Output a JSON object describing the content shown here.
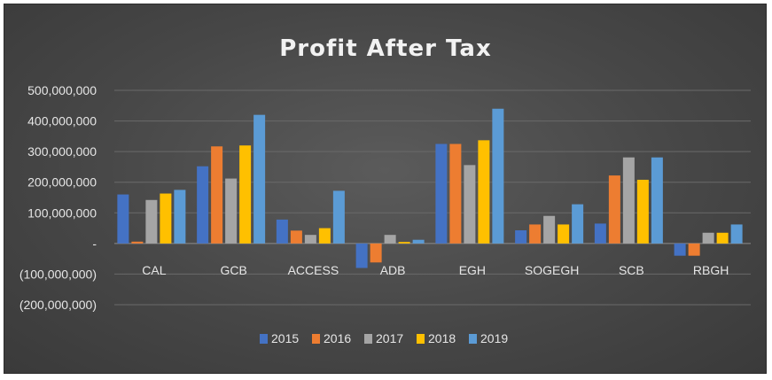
{
  "chart_data": {
    "type": "bar",
    "title": "Profit After Tax",
    "xlabel": "",
    "ylabel": "",
    "ylim": [
      -200000000,
      500000000
    ],
    "yticks": [
      {
        "value": 500000000,
        "label": "500,000,000"
      },
      {
        "value": 400000000,
        "label": "400,000,000"
      },
      {
        "value": 300000000,
        "label": "300,000,000"
      },
      {
        "value": 200000000,
        "label": "200,000,000"
      },
      {
        "value": 100000000,
        "label": "100,000,000"
      },
      {
        "value": 0,
        "label": "-"
      },
      {
        "value": -100000000,
        "label": "(100,000,000)"
      },
      {
        "value": -200000000,
        "label": "(200,000,000)"
      }
    ],
    "grid": true,
    "legend": "bottom",
    "categories": [
      "CAL",
      "GCB",
      "ACCESS",
      "ADB",
      "EGH",
      "SOGEGH",
      "SCB",
      "RBGH"
    ],
    "series": [
      {
        "name": "2015",
        "color": "#4472c4",
        "values": [
          160000000,
          252000000,
          78000000,
          -80000000,
          325000000,
          43000000,
          65000000,
          -40000000
        ]
      },
      {
        "name": "2016",
        "color": "#ed7d31",
        "values": [
          6000000,
          317000000,
          42000000,
          -62000000,
          325000000,
          62000000,
          222000000,
          -40000000
        ]
      },
      {
        "name": "2017",
        "color": "#a5a5a5",
        "values": [
          142000000,
          212000000,
          28000000,
          28000000,
          256000000,
          90000000,
          281000000,
          35000000
        ]
      },
      {
        "name": "2018",
        "color": "#ffc000",
        "values": [
          163000000,
          320000000,
          50000000,
          5000000,
          337000000,
          62000000,
          208000000,
          35000000
        ]
      },
      {
        "name": "2019",
        "color": "#5b9bd5",
        "values": [
          175000000,
          420000000,
          172000000,
          12000000,
          440000000,
          128000000,
          281000000,
          62000000
        ]
      }
    ]
  }
}
